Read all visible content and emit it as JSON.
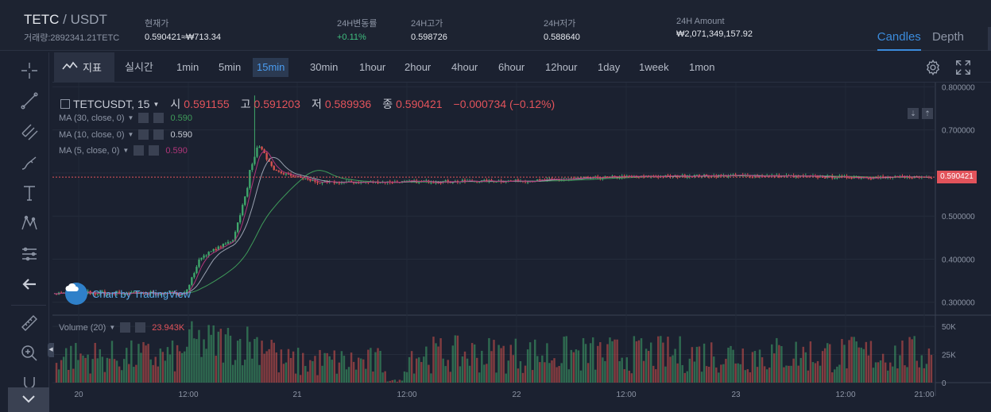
{
  "header": {
    "base": "TETC",
    "separator": " / ",
    "quote": "USDT",
    "volume_line": "거래량:2892341.21TETC",
    "current_label": "현재가",
    "current_value": "0.590421≈₩713.34",
    "change_label": "24H변동률",
    "change_value": "+0.11%",
    "high_label": "24H고가",
    "high_value": "0.598726",
    "low_label": "24H저가",
    "low_value": "0.588640",
    "amount_label": "24H Amount",
    "amount_value": "₩2,071,349,157.92",
    "view_tabs": [
      "Candles",
      "Depth"
    ],
    "active_view": "Candles"
  },
  "toolbar": {
    "indicator_label": "지표",
    "realtime_label": "실시간",
    "intervals": [
      "1min",
      "5min",
      "15min",
      "30min",
      "1hour",
      "2hour",
      "4hour",
      "6hour",
      "12hour",
      "1day",
      "1week",
      "1mon"
    ],
    "active_interval": "15min"
  },
  "left_tools": [
    "crosshair-icon",
    "trendline-icon",
    "pitchfork-icon",
    "brush-icon",
    "text-icon",
    "pattern-icon",
    "prediction-icon",
    "back-arrow-icon",
    "ruler-icon",
    "zoom-in-icon",
    "magnet-icon",
    "chevron-down-icon"
  ],
  "legend": {
    "symbol": "TETCUSDT, 15",
    "open_label": "시",
    "open": "0.591155",
    "high_label": "고",
    "high": "0.591203",
    "low_label": "저",
    "low": "0.589936",
    "close_label": "종",
    "close": "0.590421",
    "change": "−0.000734 (−0.12%)",
    "ma30_label": "MA (30, close, 0)",
    "ma30_value": "0.590",
    "ma10_label": "MA (10, close, 0)",
    "ma10_value": "0.590",
    "ma5_label": "MA (5, close, 0)",
    "ma5_value": "0.590",
    "volume_label": "Volume (20)",
    "volume_value": "23.943K"
  },
  "watermark": "Chart by TradingView",
  "price_tag": "0.590421",
  "colors": {
    "up": "#3fa86c",
    "down": "#d9534f",
    "accent": "#3b8bdc",
    "ma30": "#3f9c5a",
    "ma10": "#9aa2b1",
    "ma5": "#b0367a"
  },
  "chart_data": {
    "type": "candlestick",
    "price_axis": [
      "0.800000",
      "0.700000",
      "0.600000",
      "0.500000",
      "0.400000",
      "0.300000"
    ],
    "price_range": [
      0.27,
      0.81
    ],
    "volume_axis": [
      "50K",
      "25K",
      "0"
    ],
    "volume_range": [
      0,
      55000
    ],
    "time_labels": [
      "20",
      "12:00",
      "21",
      "12:00",
      "22",
      "12:00",
      "23",
      "12:00",
      "21:00"
    ],
    "last_price": 0.590421
  }
}
